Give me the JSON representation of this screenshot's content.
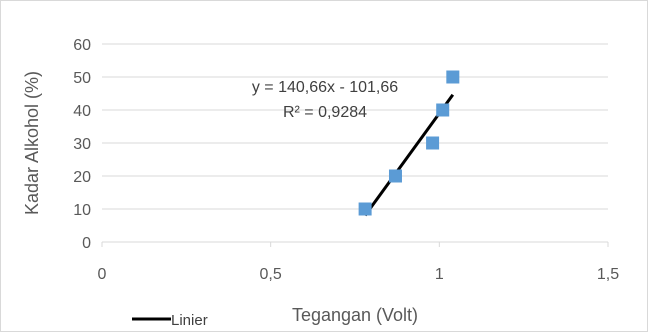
{
  "chart_data": {
    "type": "scatter",
    "title": "",
    "xlabel": "Tegangan (Volt)",
    "ylabel": "Kadar Alkohol (%)",
    "xlim": [
      0,
      1.5
    ],
    "ylim": [
      0,
      60
    ],
    "xticks": [
      0,
      0.5,
      1,
      1.5
    ],
    "xtick_labels": [
      "0",
      "0,5",
      "1",
      "1,5"
    ],
    "yticks": [
      0,
      10,
      20,
      30,
      40,
      50,
      60
    ],
    "ytick_labels": [
      "0",
      "10",
      "20",
      "30",
      "40",
      "50",
      "60"
    ],
    "grid": "horizontal",
    "marker_color": "#5b9bd5",
    "trendline_color": "#000000",
    "series": [
      {
        "points": [
          {
            "x": 0.78,
            "y": 10
          },
          {
            "x": 0.87,
            "y": 20
          },
          {
            "x": 0.98,
            "y": 30
          },
          {
            "x": 1.01,
            "y": 40
          },
          {
            "x": 1.04,
            "y": 50
          }
        ]
      }
    ],
    "trendline": {
      "slope": 140.66,
      "intercept": -101.66,
      "x_range": [
        0.78,
        1.04
      ],
      "equation_label": "y = 140,66x - 101,66",
      "r2_label": "R² = 0,9284"
    },
    "legend": {
      "position": "bottom-left",
      "entries": [
        {
          "label": "Linier",
          "style": "line"
        }
      ]
    }
  }
}
